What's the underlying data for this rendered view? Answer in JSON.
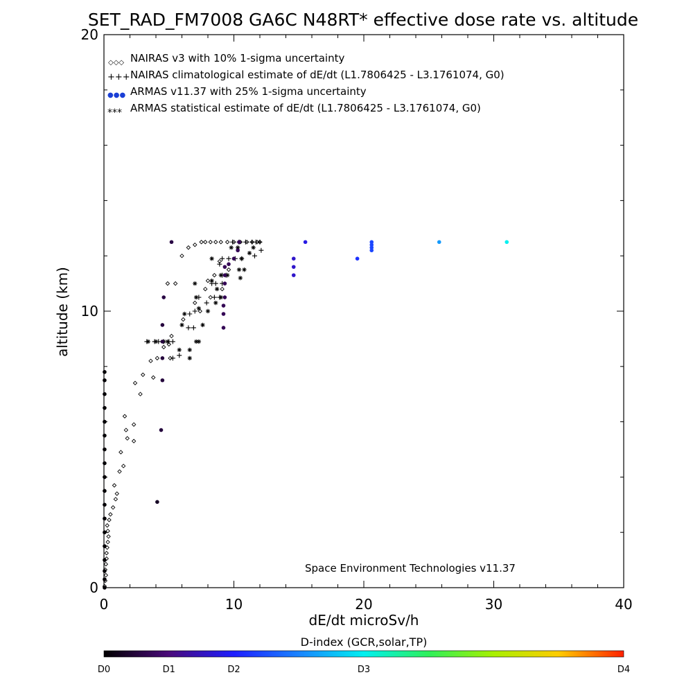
{
  "chart_data": {
    "type": "scatter",
    "title": "SET_RAD_FM7008  GA6C N48RT* effective dose rate vs. altitude",
    "xlabel": "dE/dt microSv/h",
    "ylabel": "altitude (km)",
    "xlim": [
      0,
      40
    ],
    "ylim": [
      0,
      20
    ],
    "x_ticks": [
      "0",
      "10",
      "20",
      "30",
      "40"
    ],
    "y_ticks": [
      "0",
      "10",
      "20"
    ],
    "legend_position": "top-left",
    "legend": [
      {
        "symbol": "◇◇◇",
        "label": "NAIRAS v3 with 10% 1-sigma uncertainty"
      },
      {
        "symbol": "+++",
        "label": "NAIRAS climatological estimate of dE/dt (L1.7806425 - L3.1761074, G0)"
      },
      {
        "symbol": "●●●",
        "label": "ARMAS v11.37 with 25% 1-sigma uncertainty"
      },
      {
        "symbol": "***",
        "label": "ARMAS statistical estimate of dE/dt (L1.7806425 - L3.1761074, G0)"
      }
    ],
    "annotation": "Space Environment Technologies v11.37",
    "colorbar": {
      "title": "D-index (GCR,solar,TP)",
      "ticks": [
        {
          "label": "D0",
          "value": 0
        },
        {
          "label": "D1",
          "value": 5
        },
        {
          "label": "D2",
          "value": 10
        },
        {
          "label": "D3",
          "value": 20
        },
        {
          "label": "D4",
          "value": 40
        }
      ]
    },
    "series": [
      {
        "name": "NAIRAS v3 with 10% 1-sigma uncertainty",
        "marker": "diamond",
        "points": [
          [
            0.05,
            0.05
          ],
          [
            0.1,
            0.25
          ],
          [
            0.15,
            0.45
          ],
          [
            0.1,
            0.65
          ],
          [
            0.15,
            0.85
          ],
          [
            0.2,
            1.05
          ],
          [
            0.2,
            1.25
          ],
          [
            0.25,
            1.45
          ],
          [
            0.3,
            1.65
          ],
          [
            0.35,
            1.85
          ],
          [
            0.3,
            2.05
          ],
          [
            0.25,
            2.25
          ],
          [
            0.4,
            2.45
          ],
          [
            0.5,
            2.65
          ],
          [
            0.7,
            2.9
          ],
          [
            0.9,
            3.2
          ],
          [
            1.0,
            3.4
          ],
          [
            0.8,
            3.7
          ],
          [
            1.2,
            4.2
          ],
          [
            1.5,
            4.4
          ],
          [
            1.3,
            4.9
          ],
          [
            1.8,
            5.4
          ],
          [
            2.3,
            5.3
          ],
          [
            1.7,
            5.7
          ],
          [
            2.3,
            5.9
          ],
          [
            1.6,
            6.2
          ],
          [
            2.8,
            7.0
          ],
          [
            2.4,
            7.4
          ],
          [
            3.0,
            7.7
          ],
          [
            3.8,
            7.6
          ],
          [
            3.6,
            8.2
          ],
          [
            4.1,
            8.3
          ],
          [
            5.1,
            8.3
          ],
          [
            4.6,
            8.7
          ],
          [
            5.0,
            8.8
          ],
          [
            5.2,
            9.1
          ],
          [
            6.1,
            9.7
          ],
          [
            7.4,
            10.0
          ],
          [
            7.0,
            10.3
          ],
          [
            8.2,
            10.5
          ],
          [
            7.8,
            10.8
          ],
          [
            9.1,
            10.8
          ],
          [
            4.9,
            11.0
          ],
          [
            5.5,
            11.0
          ],
          [
            8.0,
            11.1
          ],
          [
            8.5,
            11.3
          ],
          [
            9.6,
            11.5
          ],
          [
            8.9,
            11.8
          ],
          [
            6.0,
            12.0
          ],
          [
            6.5,
            12.3
          ],
          [
            7.0,
            12.4
          ],
          [
            7.5,
            12.5
          ],
          [
            7.8,
            12.5
          ],
          [
            8.2,
            12.5
          ],
          [
            8.6,
            12.5
          ],
          [
            9.0,
            12.5
          ],
          [
            9.5,
            12.5
          ],
          [
            10.0,
            12.5
          ],
          [
            10.5,
            12.5
          ],
          [
            11.0,
            12.5
          ],
          [
            11.4,
            12.5
          ],
          [
            11.8,
            12.5
          ],
          [
            12.0,
            12.5
          ]
        ]
      },
      {
        "name": "NAIRAS climatological estimate of dE/dt (L1.7806425 - L3.1761074, G0)",
        "marker": "plus",
        "points": [
          [
            3.3,
            8.9
          ],
          [
            3.9,
            8.9
          ],
          [
            4.2,
            8.9
          ],
          [
            4.6,
            8.9
          ],
          [
            5.0,
            8.9
          ],
          [
            5.3,
            8.9
          ],
          [
            5.3,
            8.3
          ],
          [
            5.8,
            8.4
          ],
          [
            6.5,
            9.4
          ],
          [
            6.9,
            9.4
          ],
          [
            6.6,
            9.9
          ],
          [
            7.0,
            10.0
          ],
          [
            7.9,
            10.3
          ],
          [
            8.5,
            10.5
          ],
          [
            8.9,
            10.5
          ],
          [
            7.3,
            10.5
          ],
          [
            8.3,
            11.0
          ],
          [
            8.6,
            11.0
          ],
          [
            9.1,
            11.0
          ],
          [
            9.1,
            11.3
          ],
          [
            9.4,
            11.3
          ],
          [
            8.9,
            11.7
          ],
          [
            9.1,
            11.9
          ],
          [
            9.6,
            11.9
          ],
          [
            10.1,
            11.9
          ],
          [
            10.6,
            11.9
          ],
          [
            9.9,
            12.5
          ],
          [
            10.4,
            12.5
          ],
          [
            10.9,
            12.5
          ],
          [
            11.4,
            12.5
          ],
          [
            11.7,
            12.5
          ],
          [
            12.0,
            12.5
          ],
          [
            12.1,
            12.2
          ],
          [
            11.6,
            12.0
          ]
        ]
      },
      {
        "name": "ARMAS statistical estimate of dE/dt (L1.7806425 - L3.1761074, G0)",
        "marker": "asterisk",
        "points": [
          [
            3.4,
            8.9
          ],
          [
            4.0,
            8.9
          ],
          [
            4.6,
            8.9
          ],
          [
            4.9,
            8.9
          ],
          [
            5.8,
            8.6
          ],
          [
            6.6,
            8.6
          ],
          [
            7.1,
            8.9
          ],
          [
            7.3,
            8.9
          ],
          [
            6.0,
            9.5
          ],
          [
            6.2,
            9.9
          ],
          [
            7.6,
            9.5
          ],
          [
            6.6,
            8.3
          ],
          [
            7.3,
            10.1
          ],
          [
            8.0,
            10.0
          ],
          [
            7.1,
            10.5
          ],
          [
            8.6,
            10.3
          ],
          [
            7.0,
            11.0
          ],
          [
            8.7,
            10.8
          ],
          [
            9.0,
            10.5
          ],
          [
            8.3,
            11.1
          ],
          [
            9.0,
            11.3
          ],
          [
            9.5,
            11.3
          ],
          [
            8.3,
            11.9
          ],
          [
            10.4,
            11.5
          ],
          [
            10.5,
            11.2
          ],
          [
            10.8,
            11.5
          ],
          [
            10.6,
            11.9
          ],
          [
            11.2,
            12.1
          ],
          [
            11.5,
            12.3
          ],
          [
            9.8,
            12.3
          ],
          [
            10.3,
            12.3
          ]
        ]
      },
      {
        "name": "ARMAS v11.37 with 25% 1-sigma uncertainty",
        "marker": "filled-circle",
        "colored_by": "D-index",
        "points": [
          [
            0.05,
            0.0,
            0.2
          ],
          [
            0.05,
            0.3,
            0.2
          ],
          [
            0.05,
            0.6,
            0.2
          ],
          [
            0.05,
            1.0,
            0.2
          ],
          [
            0.05,
            1.5,
            0.2
          ],
          [
            0.05,
            2.0,
            0.2
          ],
          [
            0.05,
            2.5,
            0.2
          ],
          [
            0.05,
            3.0,
            0.2
          ],
          [
            0.05,
            3.5,
            0.2
          ],
          [
            0.05,
            4.0,
            0.2
          ],
          [
            0.05,
            4.5,
            0.2
          ],
          [
            0.05,
            5.0,
            0.2
          ],
          [
            0.05,
            5.5,
            0.2
          ],
          [
            0.05,
            6.0,
            0.2
          ],
          [
            0.05,
            6.5,
            0.2
          ],
          [
            0.05,
            7.0,
            0.2
          ],
          [
            0.05,
            7.5,
            0.2
          ],
          [
            0.05,
            7.8,
            0.2
          ],
          [
            4.1,
            3.1,
            1.5
          ],
          [
            4.4,
            5.7,
            2.5
          ],
          [
            4.5,
            7.5,
            2.5
          ],
          [
            4.5,
            8.3,
            2.5
          ],
          [
            4.5,
            8.9,
            2.5
          ],
          [
            4.5,
            9.5,
            2.5
          ],
          [
            4.6,
            10.5,
            2.8
          ],
          [
            5.2,
            12.5,
            2.8
          ],
          [
            9.2,
            9.4,
            3.5
          ],
          [
            9.2,
            9.9,
            3.5
          ],
          [
            9.2,
            10.2,
            3.5
          ],
          [
            9.3,
            10.5,
            3.5
          ],
          [
            9.3,
            11.0,
            3.5
          ],
          [
            9.3,
            11.3,
            3.5
          ],
          [
            9.3,
            11.6,
            3.5
          ],
          [
            9.6,
            11.7,
            3.5
          ],
          [
            10.0,
            11.9,
            3.5
          ],
          [
            10.3,
            12.2,
            3.5
          ],
          [
            10.4,
            12.5,
            3.5
          ],
          [
            14.6,
            11.3,
            8
          ],
          [
            14.6,
            11.6,
            8
          ],
          [
            14.6,
            11.9,
            8
          ],
          [
            15.5,
            12.5,
            9
          ],
          [
            19.5,
            11.9,
            11
          ],
          [
            20.6,
            12.2,
            12
          ],
          [
            20.6,
            12.3,
            12
          ],
          [
            20.6,
            12.4,
            12
          ],
          [
            20.6,
            12.5,
            12
          ],
          [
            25.8,
            12.5,
            16
          ],
          [
            31.0,
            12.5,
            20
          ]
        ]
      }
    ]
  }
}
